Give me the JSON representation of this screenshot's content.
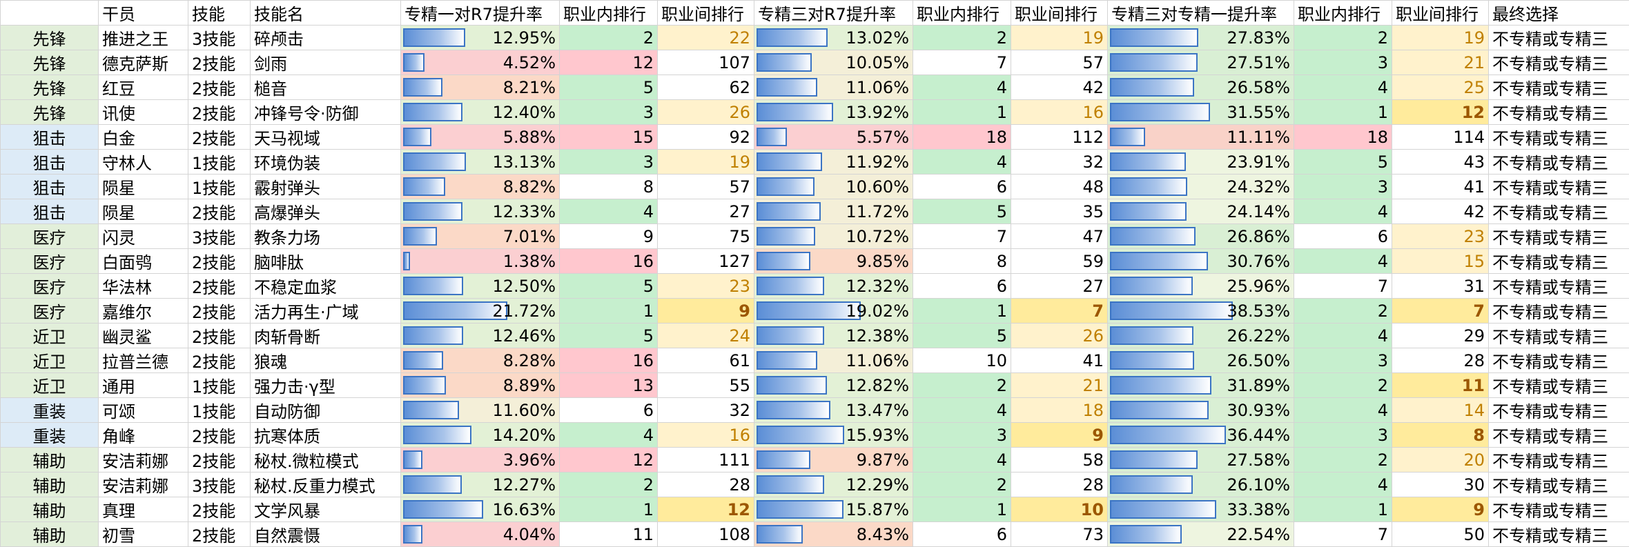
{
  "headers": [
    "",
    "干员",
    "技能",
    "技能名",
    "专精一对R7提升率",
    "职业内排行",
    "职业间排行",
    "专精三对R7提升率",
    "职业内排行",
    "职业间排行",
    "专精三对专精一提升率",
    "职业内排行",
    "职业间排行",
    "最终选择"
  ],
  "class_colors": {
    "先锋": "#e2efda",
    "狙击": "#ddebf7",
    "医疗": "#e2efda",
    "近卫": "#e2efda",
    "重装": "#ddebf7",
    "辅助": "#e2efda"
  },
  "rows": [
    {
      "cls": "先锋",
      "op": "推进之王",
      "skill": "3技能",
      "name": "碎颅击",
      "r1": "12.95%",
      "a1": "2",
      "b1": "22",
      "r3": "13.02%",
      "a3": "2",
      "b3": "19",
      "r31": "27.83%",
      "a31": "2",
      "b31": "19",
      "final": "不专精或专精三"
    },
    {
      "cls": "先锋",
      "op": "德克萨斯",
      "skill": "2技能",
      "name": "剑雨",
      "r1": "4.52%",
      "a1": "12",
      "b1": "107",
      "r3": "10.05%",
      "a3": "7",
      "b3": "57",
      "r31": "27.51%",
      "a31": "3",
      "b31": "21",
      "final": "不专精或专精三"
    },
    {
      "cls": "先锋",
      "op": "红豆",
      "skill": "2技能",
      "name": "槌音",
      "r1": "8.21%",
      "a1": "5",
      "b1": "62",
      "r3": "11.06%",
      "a3": "4",
      "b3": "42",
      "r31": "26.58%",
      "a31": "4",
      "b31": "25",
      "final": "不专精或专精三"
    },
    {
      "cls": "先锋",
      "op": "讯使",
      "skill": "2技能",
      "name": "冲锋号令·防御",
      "r1": "12.40%",
      "a1": "3",
      "b1": "26",
      "r3": "13.92%",
      "a3": "1",
      "b3": "16",
      "r31": "31.55%",
      "a31": "1",
      "b31": "12",
      "final": "不专精或专精三"
    },
    {
      "cls": "狙击",
      "op": "白金",
      "skill": "2技能",
      "name": "天马视域",
      "r1": "5.88%",
      "a1": "15",
      "b1": "92",
      "r3": "5.57%",
      "a3": "18",
      "b3": "112",
      "r31": "11.11%",
      "a31": "18",
      "b31": "114",
      "final": "不专精或专精三"
    },
    {
      "cls": "狙击",
      "op": "守林人",
      "skill": "1技能",
      "name": "环境伪装",
      "r1": "13.13%",
      "a1": "3",
      "b1": "19",
      "r3": "11.92%",
      "a3": "4",
      "b3": "32",
      "r31": "23.91%",
      "a31": "5",
      "b31": "43",
      "final": "不专精或专精三"
    },
    {
      "cls": "狙击",
      "op": "陨星",
      "skill": "1技能",
      "name": "霰射弹头",
      "r1": "8.82%",
      "a1": "8",
      "b1": "57",
      "r3": "10.60%",
      "a3": "6",
      "b3": "48",
      "r31": "24.32%",
      "a31": "3",
      "b31": "41",
      "final": "不专精或专精三"
    },
    {
      "cls": "狙击",
      "op": "陨星",
      "skill": "2技能",
      "name": "高爆弹头",
      "r1": "12.33%",
      "a1": "4",
      "b1": "27",
      "r3": "11.72%",
      "a3": "5",
      "b3": "35",
      "r31": "24.14%",
      "a31": "4",
      "b31": "42",
      "final": "不专精或专精三"
    },
    {
      "cls": "医疗",
      "op": "闪灵",
      "skill": "3技能",
      "name": "教条力场",
      "r1": "7.01%",
      "a1": "9",
      "b1": "75",
      "r3": "10.72%",
      "a3": "7",
      "b3": "47",
      "r31": "26.86%",
      "a31": "6",
      "b31": "23",
      "final": "不专精或专精三"
    },
    {
      "cls": "医疗",
      "op": "白面鸮",
      "skill": "2技能",
      "name": "脑啡肽",
      "r1": "1.38%",
      "a1": "16",
      "b1": "127",
      "r3": "9.85%",
      "a3": "8",
      "b3": "59",
      "r31": "30.76%",
      "a31": "4",
      "b31": "15",
      "final": "不专精或专精三"
    },
    {
      "cls": "医疗",
      "op": "华法林",
      "skill": "2技能",
      "name": "不稳定血浆",
      "r1": "12.50%",
      "a1": "5",
      "b1": "23",
      "r3": "12.32%",
      "a3": "6",
      "b3": "27",
      "r31": "25.96%",
      "a31": "7",
      "b31": "31",
      "final": "不专精或专精三"
    },
    {
      "cls": "医疗",
      "op": "嘉维尔",
      "skill": "2技能",
      "name": "活力再生·广域",
      "r1": "21.72%",
      "a1": "1",
      "b1": "9",
      "r3": "19.02%",
      "a3": "1",
      "b3": "7",
      "r31": "38.53%",
      "a31": "2",
      "b31": "7",
      "final": "不专精或专精三"
    },
    {
      "cls": "近卫",
      "op": "幽灵鲨",
      "skill": "2技能",
      "name": "肉斩骨断",
      "r1": "12.46%",
      "a1": "5",
      "b1": "24",
      "r3": "12.38%",
      "a3": "5",
      "b3": "26",
      "r31": "26.22%",
      "a31": "4",
      "b31": "29",
      "final": "不专精或专精三"
    },
    {
      "cls": "近卫",
      "op": "拉普兰德",
      "skill": "2技能",
      "name": "狼魂",
      "r1": "8.28%",
      "a1": "16",
      "b1": "61",
      "r3": "11.06%",
      "a3": "10",
      "b3": "41",
      "r31": "26.50%",
      "a31": "3",
      "b31": "28",
      "final": "不专精或专精三"
    },
    {
      "cls": "近卫",
      "op": "通用",
      "skill": "1技能",
      "name": "强力击·γ型",
      "r1": "8.89%",
      "a1": "13",
      "b1": "55",
      "r3": "12.82%",
      "a3": "2",
      "b3": "21",
      "r31": "31.89%",
      "a31": "2",
      "b31": "11",
      "final": "不专精或专精三"
    },
    {
      "cls": "重装",
      "op": "可颂",
      "skill": "1技能",
      "name": "自动防御",
      "r1": "11.60%",
      "a1": "6",
      "b1": "32",
      "r3": "13.47%",
      "a3": "4",
      "b3": "18",
      "r31": "30.93%",
      "a31": "4",
      "b31": "14",
      "final": "不专精或专精三"
    },
    {
      "cls": "重装",
      "op": "角峰",
      "skill": "2技能",
      "name": "抗寒体质",
      "r1": "14.20%",
      "a1": "4",
      "b1": "16",
      "r3": "15.93%",
      "a3": "3",
      "b3": "9",
      "r31": "36.44%",
      "a31": "3",
      "b31": "8",
      "final": "不专精或专精三"
    },
    {
      "cls": "辅助",
      "op": "安洁莉娜",
      "skill": "2技能",
      "name": "秘杖.微粒模式",
      "r1": "3.96%",
      "a1": "12",
      "b1": "111",
      "r3": "9.87%",
      "a3": "4",
      "b3": "58",
      "r31": "27.58%",
      "a31": "2",
      "b31": "20",
      "final": "不专精或专精三"
    },
    {
      "cls": "辅助",
      "op": "安洁莉娜",
      "skill": "3技能",
      "name": "秘杖.反重力模式",
      "r1": "12.27%",
      "a1": "2",
      "b1": "28",
      "r3": "12.29%",
      "a3": "2",
      "b3": "28",
      "r31": "26.10%",
      "a31": "4",
      "b31": "30",
      "final": "不专精或专精三"
    },
    {
      "cls": "辅助",
      "op": "真理",
      "skill": "2技能",
      "name": "文学风暴",
      "r1": "16.63%",
      "a1": "1",
      "b1": "12",
      "r3": "15.87%",
      "a3": "1",
      "b3": "10",
      "r31": "33.38%",
      "a31": "1",
      "b31": "9",
      "final": "不专精或专精三"
    },
    {
      "cls": "辅助",
      "op": "初雪",
      "skill": "2技能",
      "name": "自然震慑",
      "r1": "4.04%",
      "a1": "11",
      "b1": "108",
      "r3": "8.43%",
      "a3": "6",
      "b3": "73",
      "r31": "22.54%",
      "a31": "7",
      "b31": "50",
      "final": "不专精或专精三"
    }
  ]
}
